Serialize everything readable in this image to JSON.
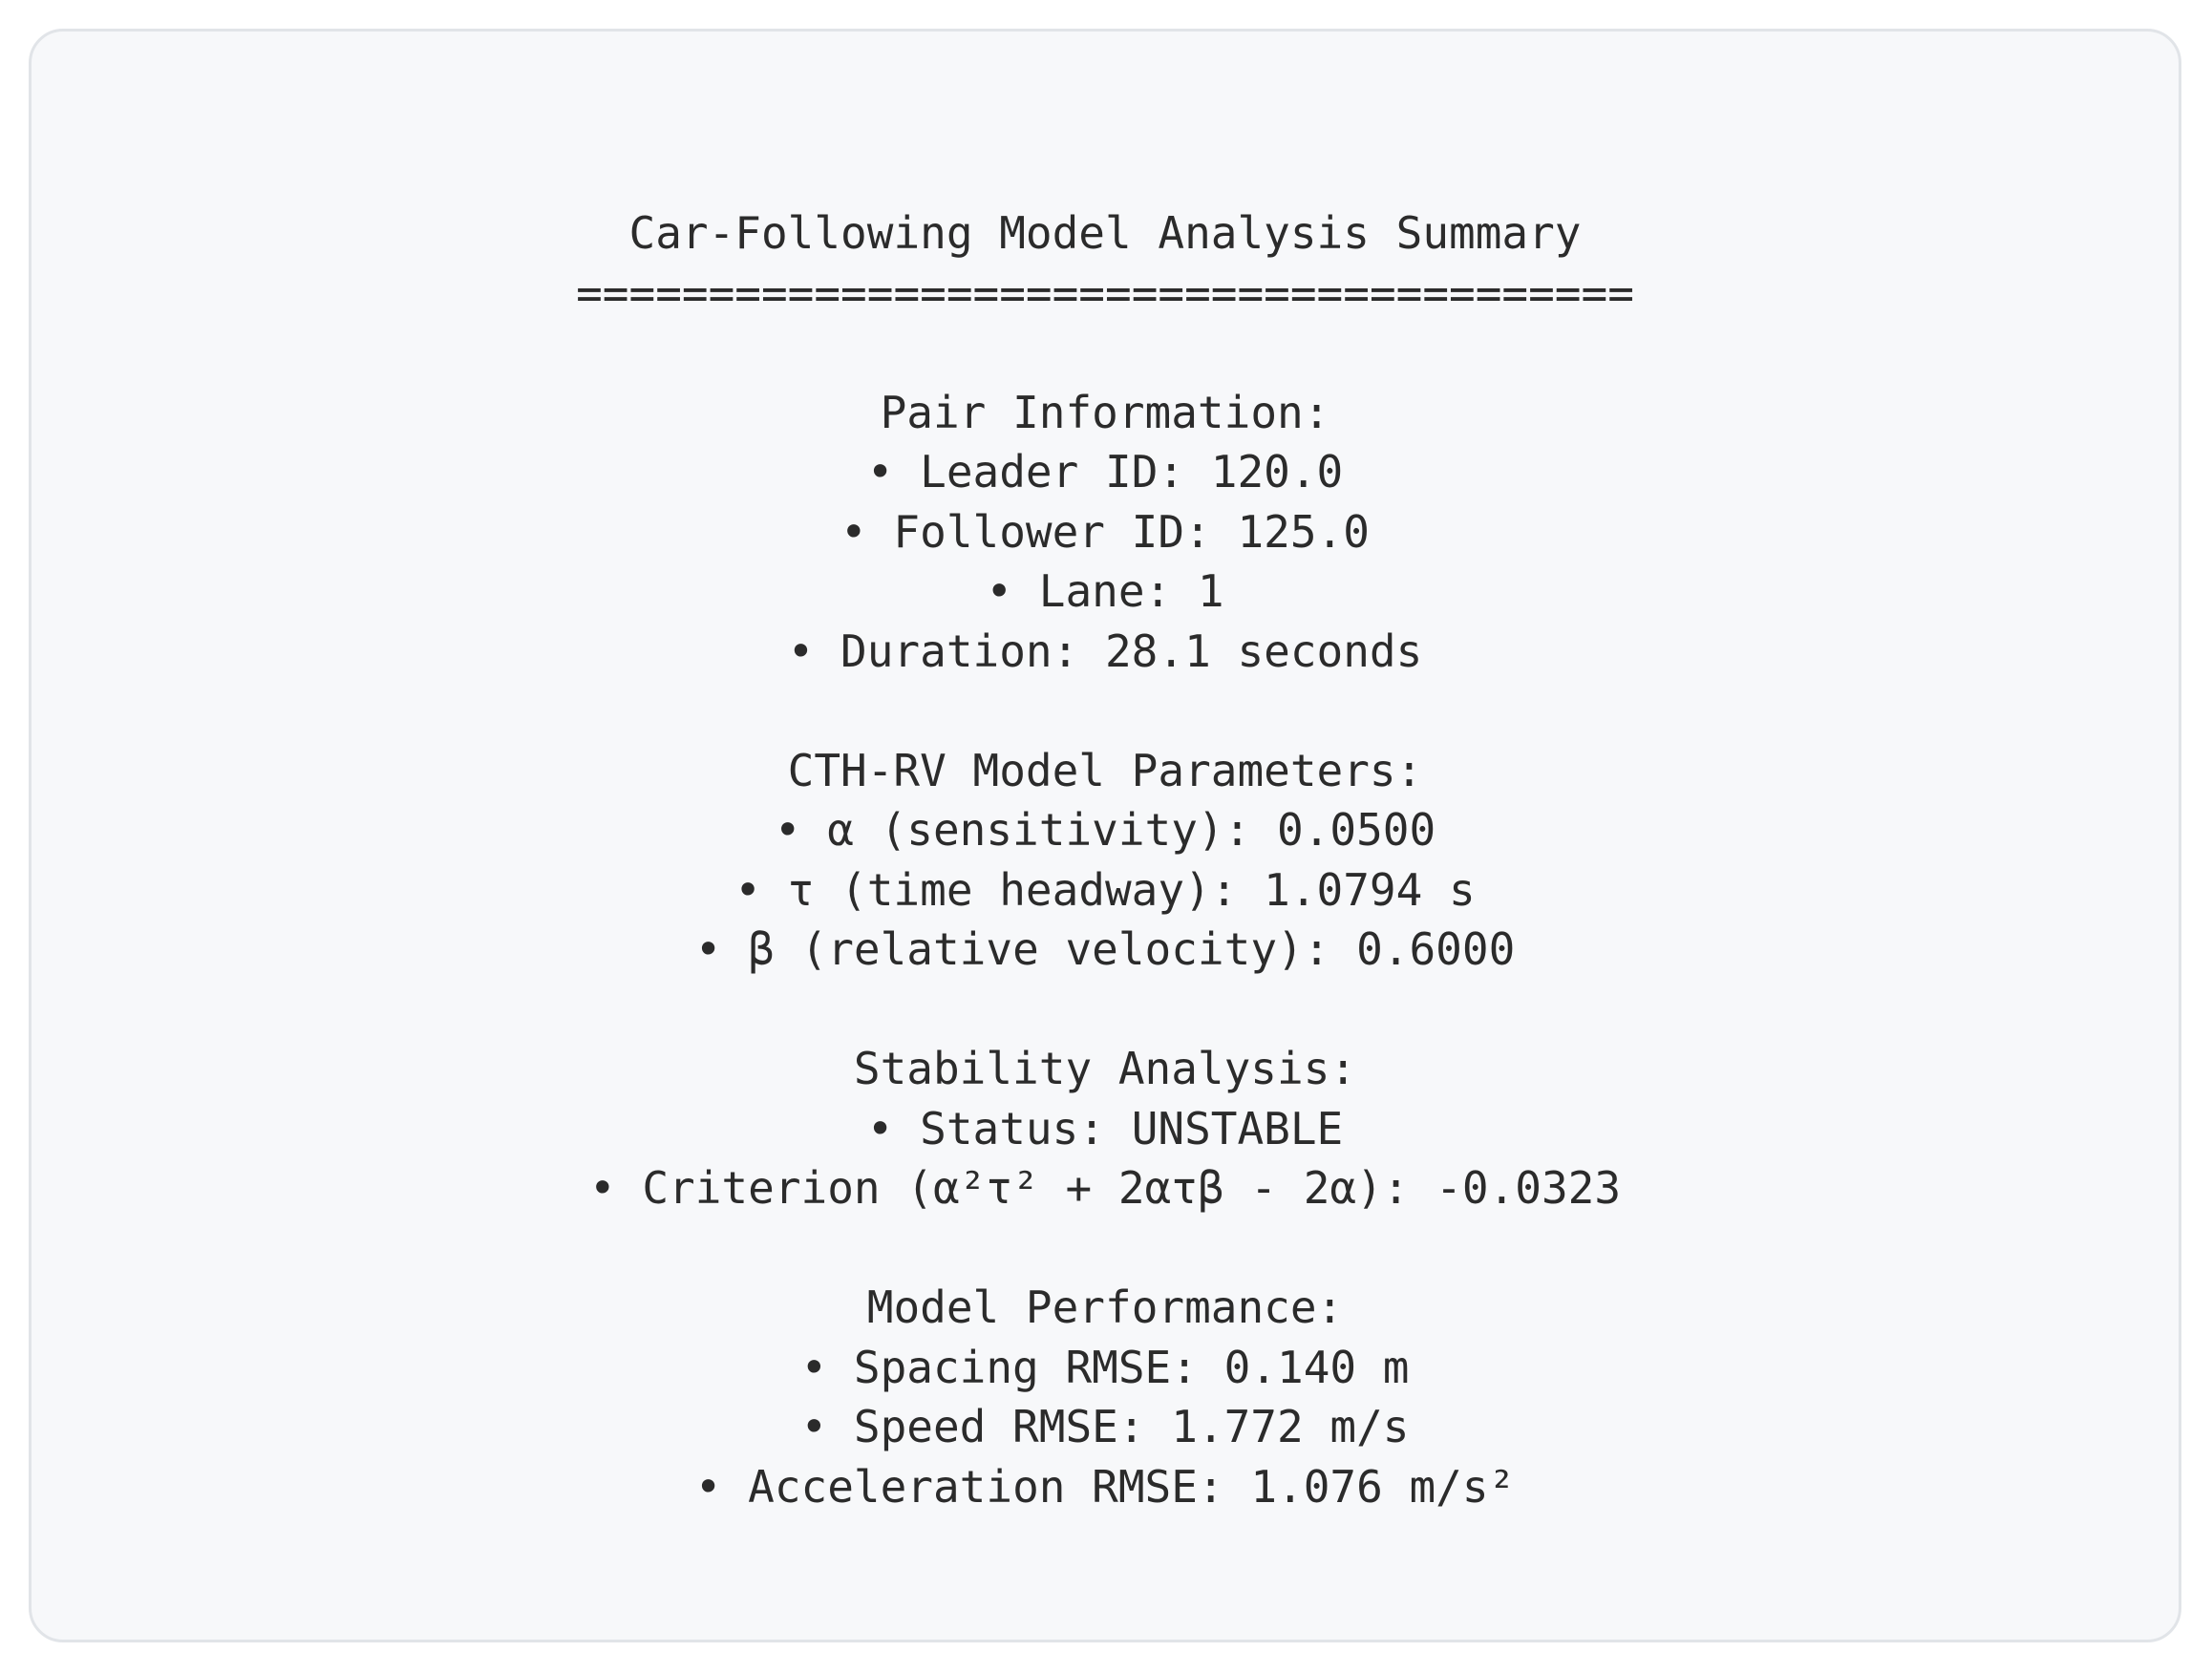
{
  "title": "Car-Following Model Analysis Summary",
  "divider": "========================================",
  "sections": [
    {
      "heading": "Pair Information:",
      "items": [
        "• Leader ID: 120.0",
        "• Follower ID: 125.0",
        "• Lane: 1",
        "• Duration: 28.1 seconds"
      ]
    },
    {
      "heading": "CTH-RV Model Parameters:",
      "items": [
        "• α (sensitivity): 0.0500",
        "• τ (time headway): 1.0794 s",
        "• β (relative velocity): 0.6000"
      ]
    },
    {
      "heading": "Stability Analysis:",
      "items": [
        "• Status: UNSTABLE",
        "• Criterion (α²τ² + 2ατβ - 2α): -0.0323"
      ]
    },
    {
      "heading": "Model Performance:",
      "items": [
        "• Spacing RMSE: 0.140 m",
        "• Speed RMSE: 1.772 m/s",
        "• Acceleration RMSE: 1.076 m/s²"
      ]
    }
  ]
}
